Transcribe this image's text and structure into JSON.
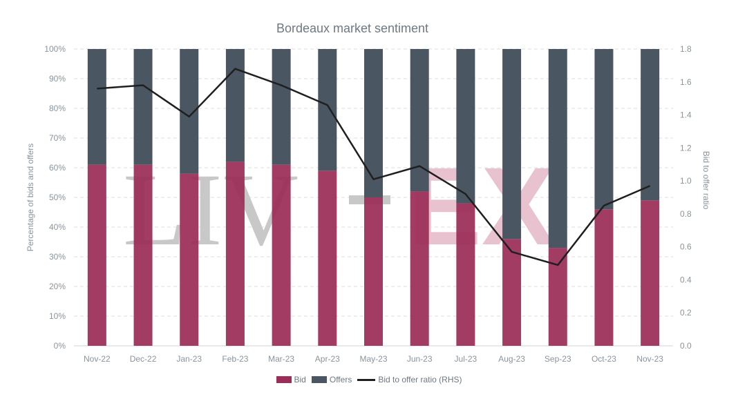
{
  "chart_data": {
    "type": "bar",
    "title": "Bordeaux market sentiment",
    "categories": [
      "Nov-22",
      "Dec-22",
      "Jan-23",
      "Feb-23",
      "Mar-23",
      "Apr-23",
      "May-23",
      "Jun-23",
      "Jul-23",
      "Aug-23",
      "Sep-23",
      "Oct-23",
      "Nov-23"
    ],
    "series": [
      {
        "name": "Bid",
        "type": "stacked-bar",
        "axis": "left",
        "color": "#9b2d56",
        "values": [
          61,
          61,
          58,
          62,
          61,
          59,
          50,
          52,
          48,
          36,
          33,
          46,
          49
        ]
      },
      {
        "name": "Offers",
        "type": "stacked-bar",
        "axis": "left",
        "color": "#4a5762",
        "values": [
          39,
          39,
          42,
          38,
          39,
          41,
          50,
          48,
          52,
          64,
          67,
          54,
          51
        ]
      },
      {
        "name": "Bid to offer ratio (RHS)",
        "type": "line",
        "axis": "right",
        "color": "#1f1f1f",
        "values": [
          1.56,
          1.58,
          1.39,
          1.68,
          1.58,
          1.46,
          1.01,
          1.09,
          0.92,
          0.57,
          0.49,
          0.85,
          0.97
        ]
      }
    ],
    "ylabel": "Percentage of bids and offers",
    "y2label": "Bid to offer ratio",
    "ylim": [
      0,
      100
    ],
    "yticks": [
      "0%",
      "10%",
      "20%",
      "30%",
      "40%",
      "50%",
      "60%",
      "70%",
      "80%",
      "90%",
      "100%"
    ],
    "y2lim": [
      0,
      1.8
    ],
    "y2ticks": [
      "0.0",
      "0.2",
      "0.4",
      "0.6",
      "0.8",
      "1.0",
      "1.2",
      "1.4",
      "1.6",
      "1.8"
    ],
    "grid": true,
    "legend": "bottom-center",
    "watermark": "LIV-EX"
  }
}
